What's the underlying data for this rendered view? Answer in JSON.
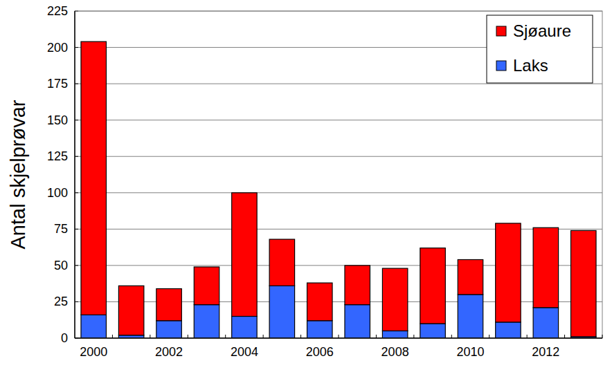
{
  "chart_data": {
    "type": "bar",
    "stacked": true,
    "y_label": "Antal skjelprøvar",
    "categories": [
      "2000",
      null,
      "2002",
      null,
      "2004",
      null,
      "2006",
      null,
      "2008",
      null,
      "2010",
      null,
      "2012",
      null
    ],
    "series": [
      {
        "name": "Laks",
        "color": "#3366ff",
        "values": [
          16,
          2,
          12,
          23,
          15,
          36,
          12,
          23,
          5,
          10,
          30,
          11,
          21,
          1
        ]
      },
      {
        "name": "Sjøaure",
        "color": "#ff0000",
        "values": [
          188,
          34,
          22,
          26,
          85,
          32,
          26,
          27,
          43,
          52,
          24,
          68,
          55,
          73
        ]
      }
    ],
    "ylim": [
      0,
      225
    ],
    "yticks": [
      0,
      25,
      50,
      75,
      100,
      125,
      150,
      175,
      200,
      225
    ],
    "grid": true,
    "legend": "top-right"
  }
}
